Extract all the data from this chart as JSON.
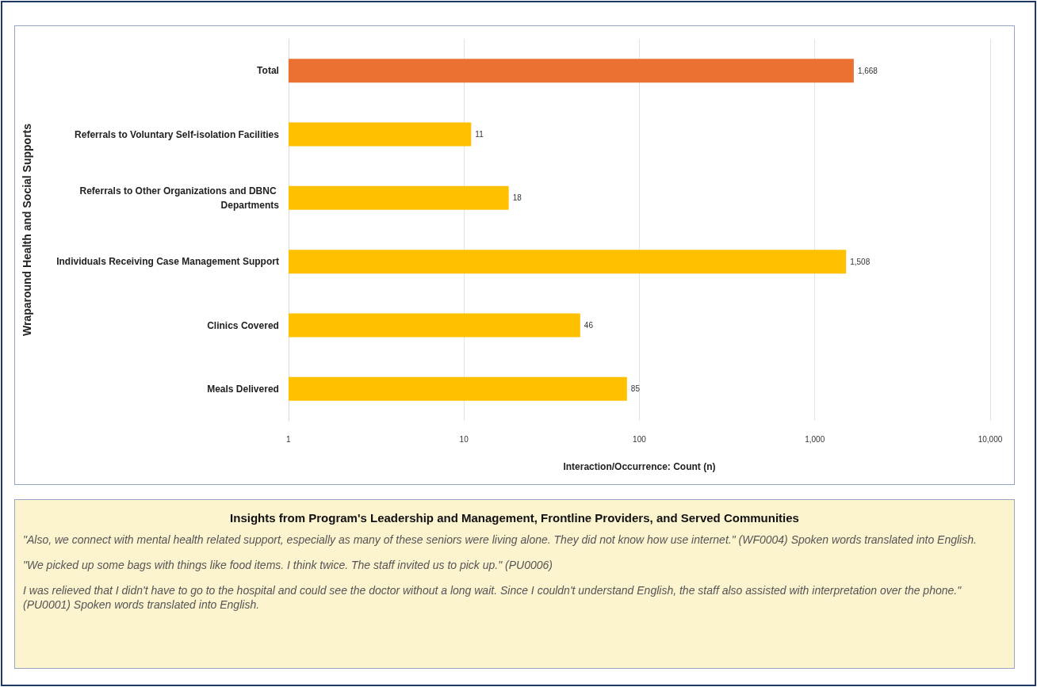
{
  "chart_data": {
    "type": "bar",
    "orientation": "horizontal",
    "log": "x",
    "ylabel": "Wraparound Health and Social Supports",
    "xlabel": "Interaction/Occurrence: Count (n)",
    "categories": [
      "Total",
      "Referrals to Voluntary Self-isolation Facilities",
      "Referrals to Other Organizations and DBNC Departments",
      "Individuals Receiving Case Management Support",
      "Clinics Covered",
      "Meals Delivered"
    ],
    "values": [
      1668,
      11,
      18,
      1508,
      46,
      85
    ],
    "colors": [
      "#ea7132",
      "#ffc000",
      "#ffc000",
      "#ffc000",
      "#ffc000",
      "#ffc000"
    ],
    "value_labels": [
      "1,668",
      "11",
      "18",
      "1,508",
      "46",
      "85"
    ],
    "xlim": [
      1,
      10000
    ],
    "xticks": [
      1,
      10,
      100,
      {
        "value": 1000,
        "label": "1,000"
      },
      {
        "value": 10000,
        "label": "10,000"
      }
    ],
    "grid": "x",
    "annotations": [
      "Insights from Program's Leadership and Management, Frontline Providers, and Served Communities",
      "\"Also, we connect with mental health related support, especially as many of these seniors were living alone. They did not know how use internet.\"  (WF0004) Spoken words translated into English.",
      "\"We picked up some bags with things like food items. I think twice. The staff invited us to pick up.\" (PU0006)",
      " I was relieved that I didn't have to go to the hospital and could see the doctor without a long wait. Since I couldn't understand English, the staff also assisted with interpretation over the phone.\" (PU0001) Spoken words translated into English."
    ]
  }
}
